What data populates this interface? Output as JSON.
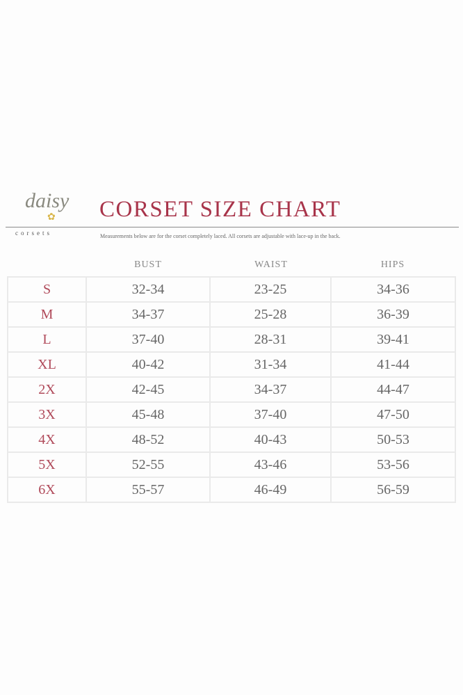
{
  "logo": {
    "wordmark": "daisy",
    "tagline": "corsets"
  },
  "title": "CORSET SIZE CHART",
  "subtitle": "Measurements below are for the corset completely laced. All corsets are adjustable with lace-up in the back.",
  "columns": [
    "BUST",
    "WAIST",
    "HIPS"
  ],
  "rows": [
    {
      "size": "S",
      "bust": "32-34",
      "waist": "23-25",
      "hips": "34-36"
    },
    {
      "size": "M",
      "bust": "34-37",
      "waist": "25-28",
      "hips": "36-39"
    },
    {
      "size": "L",
      "bust": "37-40",
      "waist": "28-31",
      "hips": "39-41"
    },
    {
      "size": "XL",
      "bust": "40-42",
      "waist": "31-34",
      "hips": "41-44"
    },
    {
      "size": "2X",
      "bust": "42-45",
      "waist": "34-37",
      "hips": "44-47"
    },
    {
      "size": "3X",
      "bust": "45-48",
      "waist": "37-40",
      "hips": "47-50"
    },
    {
      "size": "4X",
      "bust": "48-52",
      "waist": "40-43",
      "hips": "50-53"
    },
    {
      "size": "5X",
      "bust": "52-55",
      "waist": "43-46",
      "hips": "53-56"
    },
    {
      "size": "6X",
      "bust": "55-57",
      "waist": "46-49",
      "hips": "56-59"
    }
  ],
  "colors": {
    "title": "#a8344a",
    "size_label": "#b04a5a",
    "text": "#666666"
  }
}
